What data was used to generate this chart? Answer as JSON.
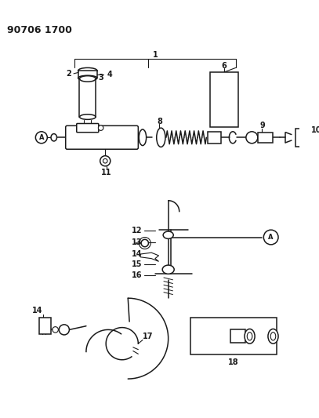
{
  "title_text": "90706 1700",
  "bg": "#ffffff",
  "lc": "#1a1a1a",
  "fig_w": 4.07,
  "fig_h": 5.33,
  "dpi": 100
}
